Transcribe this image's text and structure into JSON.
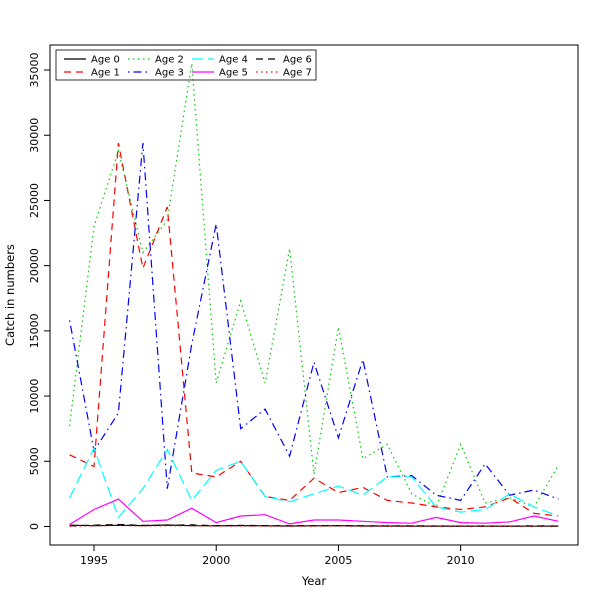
{
  "figure": {
    "background": "#ffffff"
  },
  "chart_data": {
    "type": "line",
    "title": "",
    "xlabel": "Year",
    "ylabel": "Catch in numbers",
    "x": [
      1994,
      1995,
      1996,
      1997,
      1998,
      1999,
      2000,
      2001,
      2002,
      2003,
      2004,
      2005,
      2006,
      2007,
      2008,
      2009,
      2010,
      2011,
      2012,
      2013,
      2014
    ],
    "x_ticks": [
      1995,
      2000,
      2005,
      2010
    ],
    "y_ticks": [
      0,
      5000,
      10000,
      15000,
      20000,
      25000,
      30000,
      35000
    ],
    "xlim": [
      1993.2,
      2014.8
    ],
    "ylim": [
      -1420,
      36920
    ],
    "grid": false,
    "legend_position": "top-left",
    "legend_columns": 4,
    "legend_rows": 2,
    "series": [
      {
        "name": "Age 0",
        "color": "#000000",
        "linetype": "solid",
        "values": [
          100,
          60,
          90,
          70,
          110,
          60,
          50,
          70,
          50,
          40,
          50,
          60,
          40,
          40,
          30,
          30,
          30,
          20,
          30,
          20,
          30
        ]
      },
      {
        "name": "Age 1",
        "color": "#FF0000",
        "linetype": "dashed",
        "values": [
          5500,
          4600,
          29400,
          19800,
          24500,
          4100,
          3800,
          5000,
          2300,
          2000,
          3700,
          2600,
          3000,
          2000,
          1800,
          1500,
          1300,
          1500,
          2200,
          1000,
          800
        ]
      },
      {
        "name": "Age 2",
        "color": "#00CD00",
        "linetype": "dotted",
        "values": [
          7700,
          23000,
          28800,
          21000,
          23500,
          35500,
          11000,
          17300,
          11000,
          21300,
          4000,
          15300,
          5200,
          6300,
          2500,
          1500,
          6300,
          1800,
          2200,
          1500,
          4700
        ]
      },
      {
        "name": "Age 3",
        "color": "#0000FF",
        "linetype": "dotdash",
        "values": [
          15800,
          5800,
          8700,
          29400,
          2900,
          14000,
          23200,
          7500,
          9000,
          5400,
          12600,
          6800,
          12800,
          3800,
          3900,
          2400,
          2000,
          4800,
          2400,
          2800,
          2100
        ]
      },
      {
        "name": "Age 4",
        "color": "#00FFFF",
        "linetype": "longdash",
        "values": [
          2200,
          6000,
          700,
          2900,
          5900,
          2000,
          4300,
          5000,
          2300,
          1900,
          2500,
          3100,
          2400,
          3800,
          3800,
          1500,
          1100,
          1300,
          2500,
          1500,
          800
        ]
      },
      {
        "name": "Age 5",
        "color": "#FF00FF",
        "linetype": "solid",
        "values": [
          150,
          1300,
          2100,
          400,
          500,
          1400,
          300,
          800,
          900,
          200,
          500,
          500,
          400,
          300,
          250,
          700,
          300,
          250,
          350,
          800,
          400
        ]
      },
      {
        "name": "Age 6",
        "color": "#000000",
        "linetype": "dashed",
        "values": [
          50,
          100,
          150,
          80,
          100,
          120,
          60,
          80,
          70,
          50,
          60,
          70,
          50,
          40,
          50,
          40,
          30,
          40,
          30,
          50,
          40
        ]
      },
      {
        "name": "Age 7",
        "color": "#FF0000",
        "linetype": "dotted",
        "values": [
          20,
          50,
          80,
          40,
          60,
          50,
          30,
          40,
          30,
          20,
          30,
          40,
          20,
          30,
          20,
          20,
          20,
          20,
          20,
          30,
          20
        ]
      }
    ]
  }
}
